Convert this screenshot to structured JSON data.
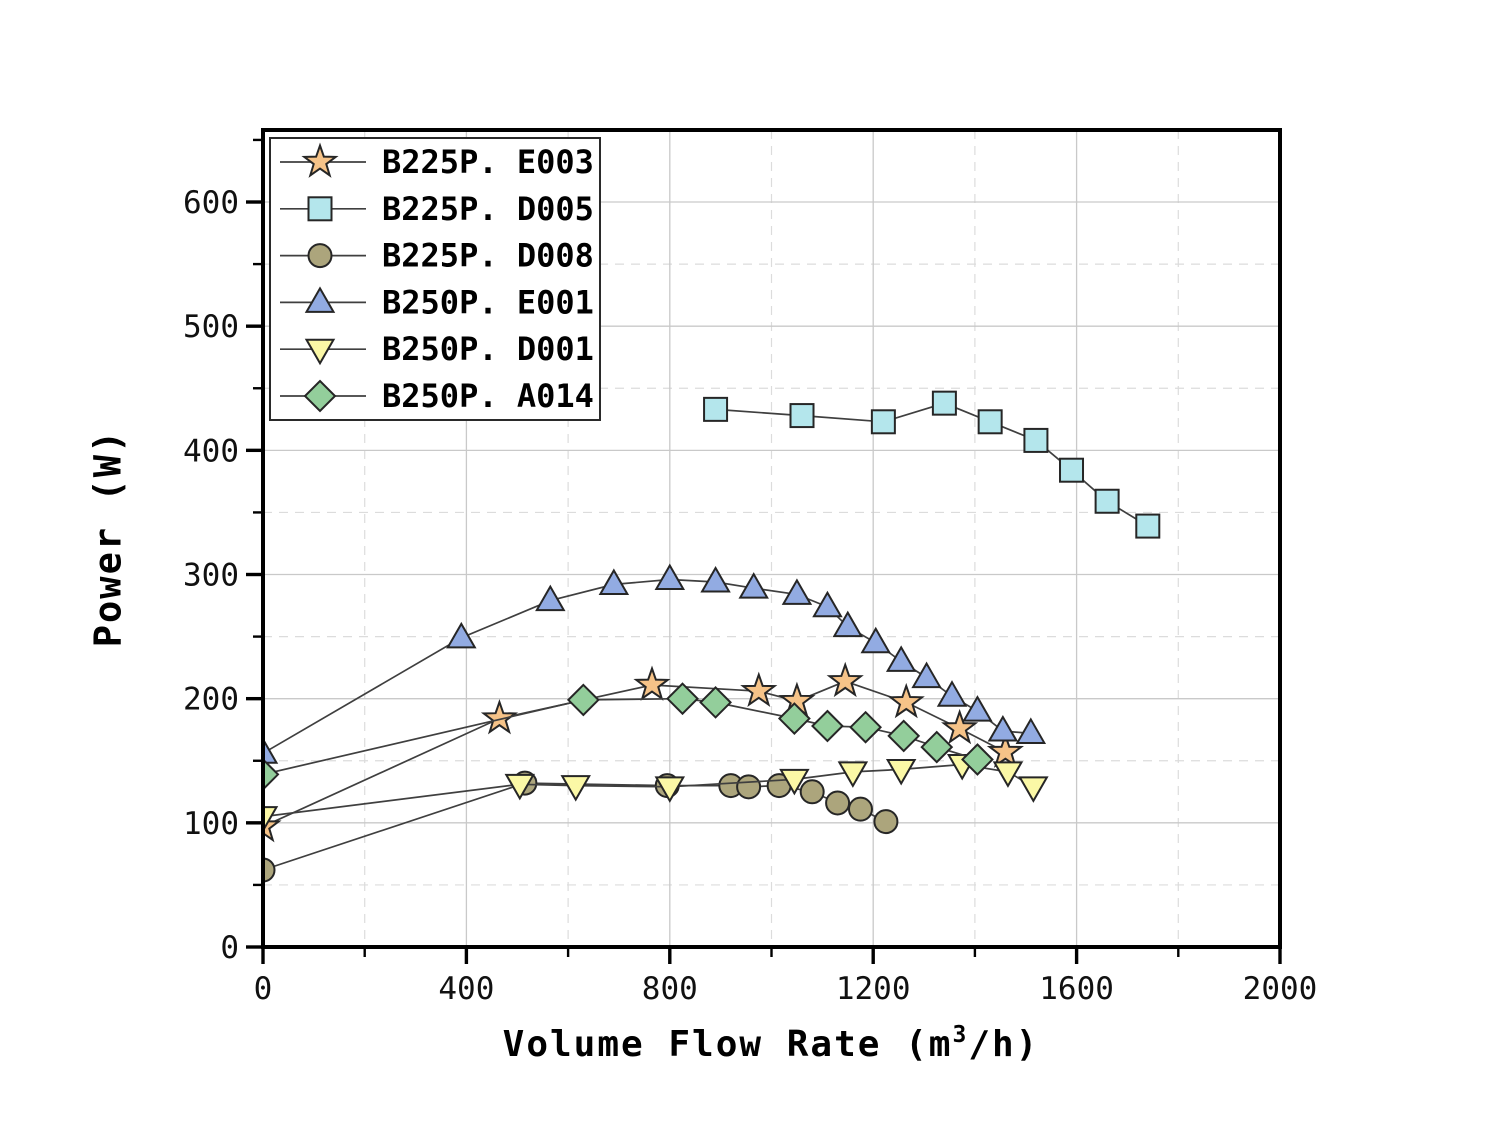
{
  "chart_data": {
    "type": "line",
    "title": "",
    "xlabel": "Volume Flow Rate (m³/h)",
    "xlabel_parts": {
      "pre": "Volume Flow Rate (m",
      "sup": "3",
      "post": "/h)"
    },
    "ylabel": "Power (W)",
    "xlim": [
      0,
      2000
    ],
    "ylim": [
      0,
      658
    ],
    "x_major_ticks": [
      0,
      400,
      800,
      1200,
      1600,
      2000
    ],
    "x_minor_ticks": [
      200,
      600,
      1000,
      1400,
      1800
    ],
    "y_major_ticks": [
      0,
      100,
      200,
      300,
      400,
      500,
      600
    ],
    "y_minor_ticks": [
      50,
      150,
      250,
      350,
      450,
      550,
      650
    ],
    "grid": {
      "major": "solid",
      "minor": "dashed"
    },
    "legend_position": "top-left",
    "series": [
      {
        "name": "B225P. E003",
        "marker": "star",
        "fill": "#F6C388",
        "points": [
          [
            0,
            97
          ],
          [
            465,
            184
          ],
          [
            765,
            211
          ],
          [
            975,
            206
          ],
          [
            1050,
            198
          ],
          [
            1145,
            214
          ],
          [
            1265,
            197
          ],
          [
            1370,
            176
          ],
          [
            1460,
            157
          ]
        ]
      },
      {
        "name": "B225P. D005",
        "marker": "square",
        "fill": "#B4E6EC",
        "points": [
          [
            890,
            433
          ],
          [
            1060,
            428
          ],
          [
            1220,
            423
          ],
          [
            1340,
            438
          ],
          [
            1430,
            423
          ],
          [
            1520,
            408
          ],
          [
            1590,
            384
          ],
          [
            1660,
            359
          ],
          [
            1740,
            339
          ]
        ]
      },
      {
        "name": "B225P. D008",
        "marker": "circle",
        "fill": "#ACA57C",
        "points": [
          [
            0,
            62
          ],
          [
            515,
            132
          ],
          [
            795,
            130
          ],
          [
            920,
            130
          ],
          [
            955,
            129
          ],
          [
            1015,
            130
          ],
          [
            1080,
            125
          ],
          [
            1130,
            116
          ],
          [
            1175,
            111
          ],
          [
            1225,
            101
          ]
        ]
      },
      {
        "name": "B250P. E001",
        "marker": "triangle-up",
        "fill": "#92ABE2",
        "points": [
          [
            0,
            156
          ],
          [
            390,
            249
          ],
          [
            565,
            279
          ],
          [
            690,
            292
          ],
          [
            800,
            296
          ],
          [
            890,
            294
          ],
          [
            965,
            289
          ],
          [
            1050,
            284
          ],
          [
            1110,
            274
          ],
          [
            1150,
            258
          ],
          [
            1205,
            245
          ],
          [
            1255,
            230
          ],
          [
            1305,
            217
          ],
          [
            1355,
            202
          ],
          [
            1405,
            190
          ],
          [
            1455,
            174
          ],
          [
            1510,
            172
          ]
        ]
      },
      {
        "name": "B250P. D001",
        "marker": "triangle-down",
        "fill": "#FBF8A6",
        "points": [
          [
            0,
            105
          ],
          [
            505,
            131
          ],
          [
            615,
            130
          ],
          [
            800,
            129
          ],
          [
            1045,
            135
          ],
          [
            1160,
            141
          ],
          [
            1255,
            143
          ],
          [
            1375,
            147
          ],
          [
            1465,
            141
          ],
          [
            1515,
            129
          ]
        ]
      },
      {
        "name": "B250P. A014",
        "marker": "diamond",
        "fill": "#93CE9B",
        "points": [
          [
            0,
            139
          ],
          [
            630,
            199
          ],
          [
            825,
            200
          ],
          [
            890,
            197
          ],
          [
            1045,
            184
          ],
          [
            1110,
            178
          ],
          [
            1185,
            177
          ],
          [
            1260,
            170
          ],
          [
            1325,
            161
          ],
          [
            1405,
            151
          ]
        ]
      }
    ]
  },
  "colors": {
    "background": "#ffffff",
    "line": "#3f3f3f",
    "marker_edge": "#262626",
    "frame": "#000000",
    "grid_major": "#c9c9c9",
    "grid_minor": "#dcdcdc",
    "tick_label": "#111111",
    "legend_border": "#2a2a2a",
    "legend_bg": "#ffffff"
  }
}
